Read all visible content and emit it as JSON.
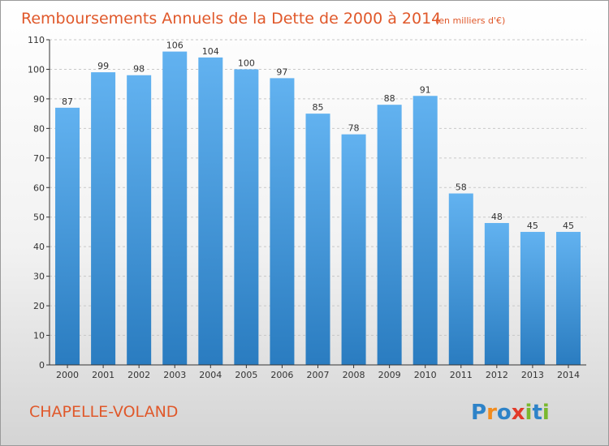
{
  "title": "Remboursements Annuels de la Dette de 2000 à 2014",
  "subtitle": "(en milliers d'€)",
  "commune": "CHAPELLE-VOLAND",
  "logo": {
    "text": "Proxiti",
    "colors": [
      "#2e83c8",
      "#f28c1e",
      "#2e83c8",
      "#e23a2a",
      "#7ab82e",
      "#2e83c8",
      "#7ab82e"
    ]
  },
  "colors": {
    "bar_top": "#62b2f0",
    "bar_bottom": "#2a7cc0",
    "title": "#e0582a",
    "grid": "#c8c8c8"
  },
  "chart_data": {
    "type": "bar",
    "title": "Remboursements Annuels de la Dette de 2000 à 2014",
    "subtitle": "(en milliers d'€)",
    "categories": [
      "2000",
      "2001",
      "2002",
      "2003",
      "2004",
      "2005",
      "2006",
      "2007",
      "2008",
      "2009",
      "2010",
      "2011",
      "2012",
      "2013",
      "2014"
    ],
    "values": [
      87,
      99,
      98,
      106,
      104,
      100,
      97,
      85,
      78,
      88,
      91,
      58,
      48,
      45,
      45
    ],
    "yticks": [
      0,
      10,
      20,
      30,
      40,
      50,
      60,
      70,
      80,
      90,
      100,
      110
    ],
    "ylim": [
      0,
      110
    ],
    "xlabel": "",
    "ylabel": "",
    "grid": true
  }
}
